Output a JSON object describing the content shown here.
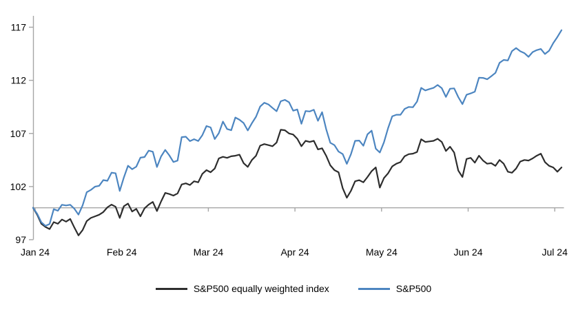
{
  "colors": {
    "axis": "#a6a6a6",
    "baseline": "#a6a6a6",
    "text": "#000000",
    "background": "#ffffff"
  },
  "chart_data": {
    "type": "line",
    "title": "",
    "xlabel": "",
    "ylabel": "",
    "x_tick_labels": [
      "Jan 24",
      "Feb 24",
      "Mar 24",
      "Apr 24",
      "May 24",
      "Jun 24",
      "Jul 24"
    ],
    "y_ticks": [
      97,
      102,
      107,
      112,
      117
    ],
    "ylim": [
      97,
      118
    ],
    "baseline": 100,
    "grid": false,
    "legend_position": "bottom",
    "x_note": "daily values indexed to 100 at start of Jan 24, through early Jul 24",
    "series": [
      {
        "name": "S&P500 equally weighted index",
        "color": "#2d2d2d",
        "values": [
          100.0,
          99.35,
          98.5,
          98.2,
          98.0,
          98.65,
          98.5,
          98.9,
          98.7,
          98.95,
          98.15,
          97.4,
          97.9,
          98.75,
          99.05,
          99.2,
          99.35,
          99.6,
          100.05,
          100.3,
          100.1,
          99.05,
          100.15,
          100.4,
          99.65,
          99.9,
          99.2,
          99.95,
          100.3,
          100.55,
          99.7,
          100.6,
          101.4,
          101.3,
          101.15,
          101.35,
          102.2,
          102.3,
          102.15,
          102.5,
          102.4,
          103.2,
          103.55,
          103.35,
          103.7,
          104.65,
          104.8,
          104.7,
          104.85,
          104.9,
          105.0,
          104.2,
          103.85,
          104.5,
          104.9,
          105.85,
          106.0,
          105.9,
          105.8,
          106.15,
          107.35,
          107.3,
          107.0,
          106.9,
          106.5,
          105.8,
          106.3,
          106.2,
          106.3,
          105.5,
          105.6,
          104.9,
          104.0,
          103.55,
          103.35,
          101.85,
          100.95,
          101.6,
          102.5,
          102.6,
          102.4,
          102.9,
          103.45,
          103.8,
          101.9,
          102.8,
          103.25,
          103.9,
          104.15,
          104.3,
          104.85,
          105.05,
          105.1,
          105.25,
          106.45,
          106.2,
          106.25,
          106.3,
          106.5,
          106.2,
          105.35,
          105.75,
          105.2,
          103.5,
          102.9,
          104.6,
          104.7,
          104.25,
          104.9,
          104.45,
          104.15,
          104.2,
          103.95,
          104.5,
          104.15,
          103.4,
          103.3,
          103.7,
          104.35,
          104.5,
          104.45,
          104.65,
          104.9,
          105.1,
          104.3,
          103.95,
          103.8,
          103.4,
          103.8
        ]
      },
      {
        "name": "S&P500",
        "color": "#4c85c0",
        "values": [
          100.0,
          99.43,
          98.64,
          98.3,
          98.48,
          99.87,
          99.72,
          100.29,
          100.22,
          100.29,
          99.92,
          99.36,
          100.23,
          101.47,
          101.69,
          101.99,
          102.07,
          102.61,
          102.54,
          103.31,
          103.25,
          101.59,
          102.86,
          103.96,
          103.63,
          103.87,
          104.72,
          104.78,
          105.38,
          105.28,
          103.84,
          104.84,
          105.45,
          104.94,
          104.31,
          104.44,
          106.65,
          106.69,
          106.28,
          106.46,
          106.29,
          106.84,
          107.7,
          107.57,
          106.47,
          107.02,
          108.12,
          107.42,
          107.3,
          108.5,
          108.29,
          107.98,
          107.28,
          107.96,
          108.57,
          109.53,
          109.89,
          109.73,
          109.4,
          109.09,
          110.03,
          110.16,
          109.94,
          109.14,
          109.26,
          107.91,
          109.11,
          109.07,
          109.23,
          108.19,
          109.0,
          107.41,
          106.12,
          105.9,
          105.29,
          105.06,
          104.14,
          105.05,
          106.3,
          106.33,
          105.84,
          106.92,
          107.26,
          105.57,
          105.21,
          106.17,
          107.5,
          108.61,
          108.76,
          108.76,
          109.31,
          109.49,
          109.47,
          110.0,
          111.29,
          111.05,
          111.18,
          111.29,
          111.56,
          111.26,
          110.44,
          111.21,
          111.24,
          110.42,
          109.76,
          110.64,
          110.77,
          110.93,
          112.25,
          112.23,
          112.1,
          112.39,
          112.7,
          113.65,
          113.92,
          113.87,
          114.75,
          115.04,
          114.74,
          114.56,
          114.21,
          114.66,
          114.84,
          114.95,
          114.48,
          114.79,
          115.5,
          116.08,
          116.72
        ]
      }
    ]
  },
  "legend": {
    "items": [
      "S&P500 equally weighted index",
      "S&P500"
    ]
  }
}
